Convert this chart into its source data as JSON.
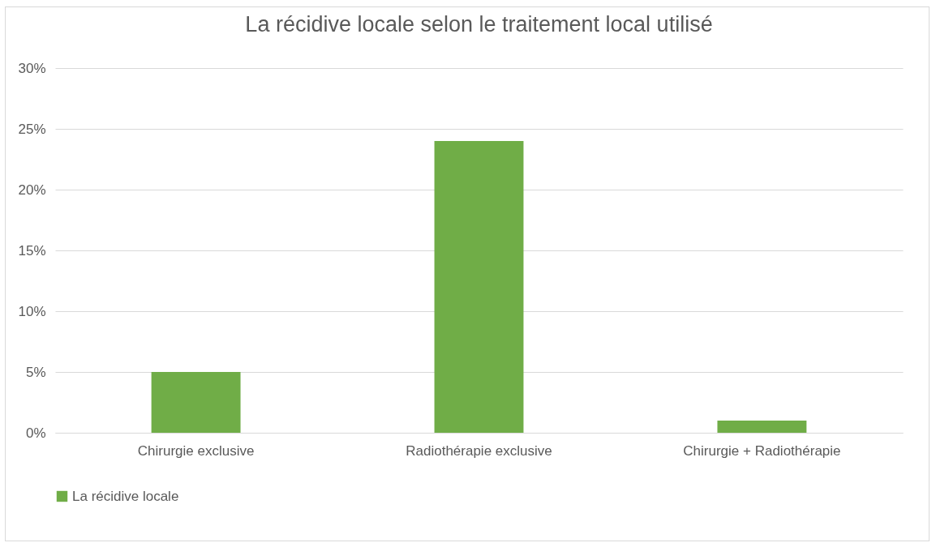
{
  "chart_data": {
    "type": "bar",
    "title": "La récidive locale selon le traitement local utilisé",
    "categories": [
      "Chirurgie exclusive",
      "Radiothérapie exclusive",
      "Chirurgie + Radiothérapie"
    ],
    "series": [
      {
        "name": "La récidive locale",
        "color": "#70ad47",
        "values": [
          5,
          24,
          1
        ]
      }
    ],
    "ylim": [
      0,
      30
    ],
    "yticks": [
      {
        "value": 0,
        "label": "0%"
      },
      {
        "value": 5,
        "label": "5%"
      },
      {
        "value": 10,
        "label": "10%"
      },
      {
        "value": 15,
        "label": "15%"
      },
      {
        "value": 20,
        "label": "20%"
      },
      {
        "value": 25,
        "label": "25%"
      },
      {
        "value": 30,
        "label": "30%"
      }
    ],
    "grid": "y",
    "legend": "bottom"
  }
}
